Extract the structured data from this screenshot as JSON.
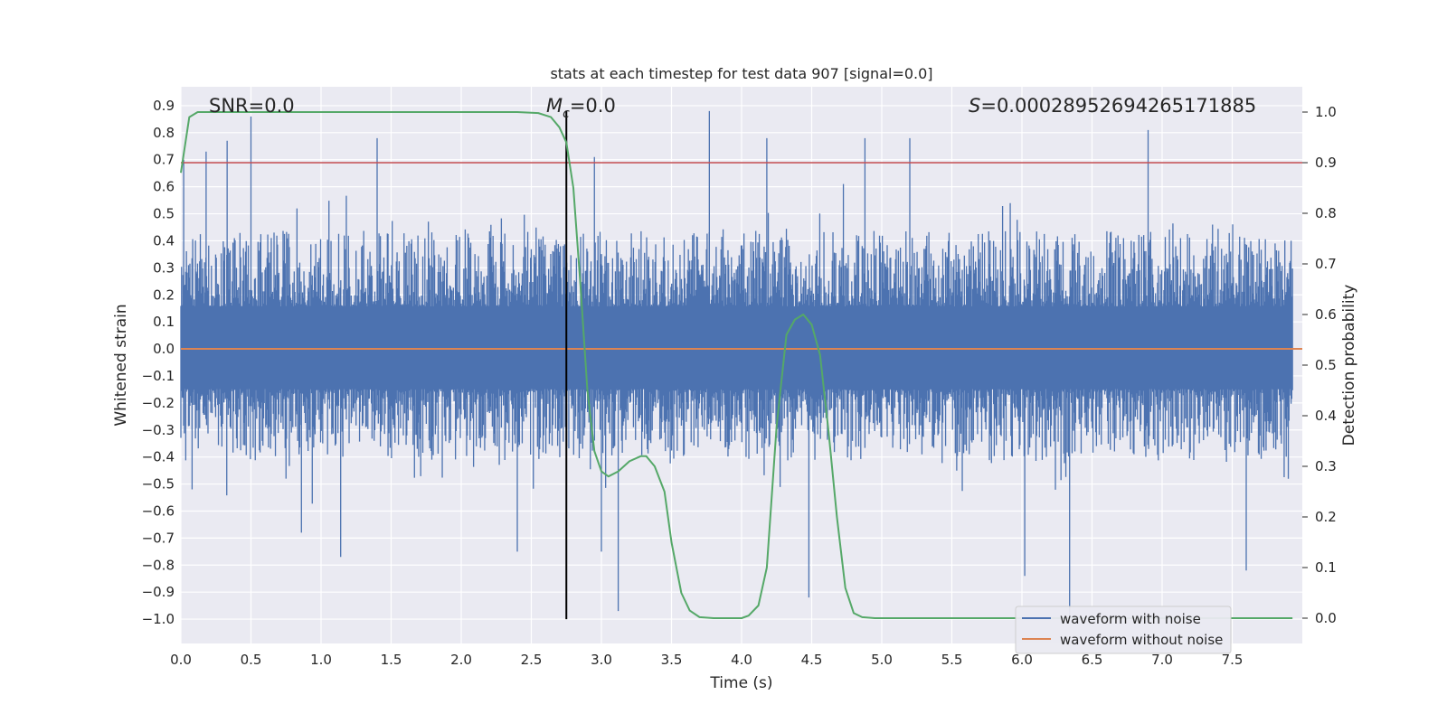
{
  "chart_data": {
    "type": "line",
    "title": "stats at each timestep for test data 907 [signal=0.0]",
    "xlabel": "Time (s)",
    "ylabel": "Whitened strain",
    "y2label": "Detection probability",
    "xlim": [
      0.0,
      8.0
    ],
    "ylim": [
      -1.09,
      0.97
    ],
    "y2lim": [
      -0.05,
      1.05
    ],
    "xticks": [
      "0.0",
      "0.5",
      "1.0",
      "1.5",
      "2.0",
      "2.5",
      "3.0",
      "3.5",
      "4.0",
      "4.5",
      "5.0",
      "5.5",
      "6.0",
      "6.5",
      "7.0",
      "7.5"
    ],
    "xtick_values": [
      0.0,
      0.5,
      1.0,
      1.5,
      2.0,
      2.5,
      3.0,
      3.5,
      4.0,
      4.5,
      5.0,
      5.5,
      6.0,
      6.5,
      7.0,
      7.5
    ],
    "yticks": [
      "0.9",
      "0.8",
      "0.7",
      "0.6",
      "0.5",
      "0.4",
      "0.3",
      "0.2",
      "0.1",
      "0.0",
      "−0.1",
      "−0.2",
      "−0.3",
      "−0.4",
      "−0.5",
      "−0.6",
      "−0.7",
      "−0.8",
      "−0.9",
      "−1.0"
    ],
    "ytick_values": [
      0.9,
      0.8,
      0.7,
      0.6,
      0.5,
      0.4,
      0.3,
      0.2,
      0.1,
      0.0,
      -0.1,
      -0.2,
      -0.3,
      -0.4,
      -0.5,
      -0.6,
      -0.7,
      -0.8,
      -0.9,
      -1.0
    ],
    "y2ticks": [
      "1.0",
      "0.9",
      "0.8",
      "0.7",
      "0.6",
      "0.5",
      "0.4",
      "0.3",
      "0.2",
      "0.1",
      "0.0"
    ],
    "y2tick_values": [
      1.0,
      0.9,
      0.8,
      0.7,
      0.6,
      0.5,
      0.4,
      0.3,
      0.2,
      0.1,
      0.0
    ],
    "annotations": {
      "snr": "SNR=0.0",
      "mc_symbol": "M",
      "mc_subscript": "c",
      "mc_value": "=0.0",
      "s_symbol": "S",
      "s_value": "=0.00028952694265171885"
    },
    "legend": {
      "placement": "lower-right",
      "entries": [
        "waveform with noise",
        "waveform without noise"
      ]
    },
    "series": [
      {
        "name": "waveform with noise",
        "color": "#4c72b0",
        "axis": "left",
        "note_style": "dense noise",
        "envelope_typical": [
          -0.33,
          0.35
        ],
        "peaks": [
          {
            "x": 0.02,
            "y": 0.7
          },
          {
            "x": 0.08,
            "y": -0.52
          },
          {
            "x": 0.18,
            "y": 0.73
          },
          {
            "x": 0.33,
            "y": 0.77
          },
          {
            "x": 0.5,
            "y": 0.86
          },
          {
            "x": 0.71,
            "y": -0.05
          },
          {
            "x": 0.75,
            "y": -0.48
          },
          {
            "x": 0.86,
            "y": -0.68
          },
          {
            "x": 1.14,
            "y": -0.77
          },
          {
            "x": 1.4,
            "y": 0.78
          },
          {
            "x": 2.4,
            "y": -0.75
          },
          {
            "x": 2.95,
            "y": 0.71
          },
          {
            "x": 3.0,
            "y": -0.75
          },
          {
            "x": 3.12,
            "y": -0.97
          },
          {
            "x": 3.77,
            "y": 0.88
          },
          {
            "x": 4.18,
            "y": 0.78
          },
          {
            "x": 4.48,
            "y": -0.92
          },
          {
            "x": 4.88,
            "y": 0.78
          },
          {
            "x": 5.2,
            "y": 0.78
          },
          {
            "x": 6.02,
            "y": -0.84
          },
          {
            "x": 6.34,
            "y": -0.99
          },
          {
            "x": 6.9,
            "y": 0.81
          },
          {
            "x": 7.6,
            "y": -0.82
          }
        ]
      },
      {
        "name": "waveform without noise",
        "color": "#dd8452",
        "axis": "left",
        "x": [
          0.0,
          8.0
        ],
        "y": [
          0.0,
          0.0
        ]
      },
      {
        "name": "",
        "color": "#55a868",
        "axis": "right",
        "x": [
          0.0,
          0.06,
          0.12,
          0.5,
          1.0,
          1.5,
          2.0,
          2.4,
          2.55,
          2.64,
          2.7,
          2.75,
          2.8,
          2.85,
          2.9,
          2.95,
          3.0,
          3.05,
          3.12,
          3.2,
          3.28,
          3.32,
          3.38,
          3.45,
          3.5,
          3.57,
          3.63,
          3.7,
          3.8,
          3.9,
          4.0,
          4.05,
          4.12,
          4.18,
          4.25,
          4.32,
          4.38,
          4.44,
          4.5,
          4.56,
          4.62,
          4.68,
          4.74,
          4.8,
          4.86,
          4.95,
          5.5,
          6.0,
          6.5,
          7.0,
          7.5,
          7.93
        ],
        "y": [
          0.88,
          0.99,
          1.0,
          1.0,
          1.0,
          1.0,
          1.0,
          1.0,
          0.998,
          0.99,
          0.97,
          0.94,
          0.85,
          0.66,
          0.45,
          0.33,
          0.29,
          0.28,
          0.29,
          0.31,
          0.32,
          0.32,
          0.3,
          0.25,
          0.15,
          0.05,
          0.015,
          0.002,
          0.0,
          0.0,
          0.0,
          0.005,
          0.025,
          0.1,
          0.38,
          0.56,
          0.59,
          0.6,
          0.58,
          0.52,
          0.37,
          0.2,
          0.06,
          0.01,
          0.002,
          0.0,
          0.0,
          0.0,
          0.0,
          0.0,
          0.0,
          0.0
        ]
      }
    ],
    "hlines": [
      {
        "axis": "right",
        "y": 0.9,
        "color": "#c44e52"
      }
    ],
    "vlines": [
      {
        "axis": "left",
        "x": 2.75,
        "y_from": -1.0,
        "y_to": 0.88,
        "color": "#000000"
      }
    ],
    "grid": true,
    "background": "#eaeaf2"
  }
}
